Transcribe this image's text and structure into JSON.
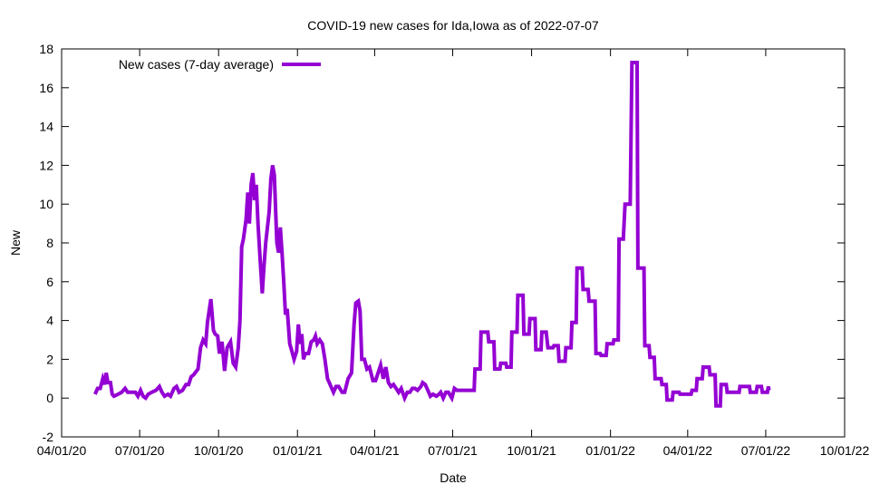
{
  "chart_data": {
    "type": "line",
    "title": "COVID-19 new cases for Ida,Iowa as of 2022-07-07",
    "xlabel": "Date",
    "ylabel": "New",
    "x_units": "days since 04/01/20",
    "xlim": [
      0,
      913
    ],
    "ylim": [
      -2,
      18
    ],
    "grid": false,
    "legend_position": "top-left",
    "x_ticks": [
      {
        "label": "04/01/20",
        "value": 0
      },
      {
        "label": "07/01/20",
        "value": 91
      },
      {
        "label": "10/01/20",
        "value": 183
      },
      {
        "label": "01/01/21",
        "value": 275
      },
      {
        "label": "04/01/21",
        "value": 365
      },
      {
        "label": "07/01/21",
        "value": 456
      },
      {
        "label": "10/01/21",
        "value": 548
      },
      {
        "label": "01/01/22",
        "value": 640
      },
      {
        "label": "04/01/22",
        "value": 730
      },
      {
        "label": "07/01/22",
        "value": 821
      },
      {
        "label": "10/01/22",
        "value": 913
      }
    ],
    "y_ticks": [
      "-2",
      "0",
      "2",
      "4",
      "6",
      "8",
      "10",
      "12",
      "14",
      "16",
      "18"
    ],
    "series": [
      {
        "name": "New cases (7-day average)",
        "color": "#9400d3",
        "x": [
          39,
          42,
          45,
          48,
          50,
          52,
          54,
          57,
          59,
          61,
          66,
          70,
          74,
          77,
          81,
          86,
          89,
          92,
          95,
          98,
          101,
          105,
          110,
          114,
          117,
          120,
          124,
          127,
          131,
          134,
          137,
          141,
          145,
          148,
          151,
          154,
          159,
          162,
          165,
          168,
          170,
          172,
          174,
          177,
          179,
          182,
          184,
          187,
          190,
          193,
          197,
          200,
          203,
          206,
          208,
          210,
          212,
          215,
          217,
          219,
          221,
          223,
          225,
          227,
          229,
          231,
          234,
          236,
          238,
          240,
          242,
          244,
          246,
          248,
          251,
          253,
          255,
          257,
          259,
          261,
          263,
          266,
          268,
          271,
          274,
          276,
          278,
          280,
          282,
          284,
          288,
          291,
          294,
          296,
          298,
          301,
          304,
          307,
          310,
          312,
          315,
          317,
          320,
          323,
          327,
          330,
          334,
          338,
          341,
          343,
          346,
          348,
          350,
          353,
          356,
          359,
          363,
          366,
          369,
          372,
          375,
          378,
          381,
          384,
          387,
          390,
          393,
          396,
          400,
          403,
          406,
          409,
          412,
          415,
          419,
          421,
          424,
          427,
          430,
          433,
          437,
          440,
          442,
          445,
          448,
          451,
          455,
          458,
          461,
          481,
          482,
          488,
          489,
          497,
          498,
          504,
          505,
          511,
          512,
          518,
          519,
          524,
          525,
          531,
          532,
          538,
          539,
          545,
          546,
          552,
          553,
          559,
          560,
          565,
          567,
          573,
          574,
          579,
          580,
          587,
          588,
          594,
          595,
          600,
          601,
          607,
          608,
          614,
          615,
          622,
          623,
          628,
          629,
          635,
          636,
          643,
          644,
          649,
          650,
          655,
          657,
          663,
          665,
          671,
          672,
          679,
          680,
          685,
          686,
          691,
          692,
          699,
          700,
          705,
          706,
          712,
          713,
          720,
          721,
          734,
          735,
          740,
          741,
          747,
          748,
          755,
          756,
          762,
          763,
          768,
          769,
          775,
          776,
          790,
          791,
          802,
          803,
          810,
          811,
          816,
          817,
          823,
          824,
          825
        ],
        "y": [
          0.2,
          0.5,
          0.5,
          1.0,
          0.7,
          1.3,
          0.8,
          0.8,
          0.2,
          0.1,
          0.2,
          0.3,
          0.5,
          0.3,
          0.3,
          0.3,
          0.1,
          0.4,
          0.1,
          0.0,
          0.2,
          0.3,
          0.4,
          0.6,
          0.3,
          0.1,
          0.2,
          0.1,
          0.5,
          0.6,
          0.3,
          0.4,
          0.7,
          0.7,
          1.1,
          1.2,
          1.5,
          2.6,
          3.0,
          2.8,
          3.9,
          4.5,
          5.1,
          3.5,
          3.3,
          3.2,
          2.3,
          2.9,
          1.4,
          2.6,
          2.9,
          1.8,
          1.6,
          2.6,
          4.0,
          7.8,
          8.2,
          9.2,
          10.6,
          9.0,
          11.0,
          11.6,
          10.2,
          11.0,
          9.0,
          7.5,
          5.4,
          6.8,
          8.0,
          8.8,
          9.6,
          11.3,
          12.0,
          11.5,
          8.0,
          7.5,
          8.8,
          7.5,
          6.0,
          4.3,
          4.6,
          2.8,
          2.5,
          2.0,
          2.4,
          3.8,
          2.8,
          3.3,
          2.0,
          2.3,
          2.3,
          2.9,
          3.0,
          3.2,
          2.8,
          3.0,
          2.8,
          2.0,
          1.0,
          0.8,
          0.5,
          0.3,
          0.6,
          0.6,
          0.3,
          0.3,
          1.0,
          1.3,
          3.8,
          4.9,
          5.0,
          4.5,
          2.0,
          2.0,
          1.5,
          1.6,
          0.9,
          0.9,
          1.3,
          1.7,
          1.0,
          1.6,
          0.8,
          0.6,
          0.7,
          0.5,
          0.3,
          0.5,
          0.0,
          0.3,
          0.3,
          0.5,
          0.5,
          0.4,
          0.6,
          0.8,
          0.7,
          0.4,
          0.1,
          0.2,
          0.1,
          0.2,
          0.3,
          0.0,
          0.3,
          0.3,
          0.0,
          0.5,
          0.4,
          0.4,
          1.5,
          1.5,
          3.4,
          3.4,
          2.9,
          2.9,
          1.5,
          1.5,
          1.8,
          1.8,
          1.6,
          1.6,
          3.4,
          3.4,
          5.3,
          5.3,
          3.3,
          3.3,
          4.1,
          4.1,
          2.5,
          2.5,
          3.4,
          3.4,
          2.6,
          2.6,
          2.7,
          2.7,
          1.9,
          1.9,
          2.6,
          2.6,
          3.9,
          3.9,
          6.7,
          6.7,
          5.6,
          5.6,
          5.0,
          5.0,
          2.3,
          2.3,
          2.2,
          2.2,
          2.8,
          2.8,
          3.0,
          3.0,
          8.2,
          8.2,
          10.0,
          10.0,
          17.3,
          17.3,
          6.7,
          6.7,
          2.7,
          2.7,
          2.1,
          2.1,
          1.0,
          1.0,
          0.7,
          0.7,
          -0.1,
          -0.1,
          0.3,
          0.3,
          0.2,
          0.2,
          0.4,
          0.4,
          1.0,
          1.0,
          1.6,
          1.6,
          1.2,
          1.2,
          -0.4,
          -0.4,
          0.7,
          0.7,
          0.3,
          0.3,
          0.6,
          0.6,
          0.3,
          0.3,
          0.6,
          0.6,
          0.3,
          0.3,
          0.6,
          0.4
        ]
      }
    ]
  }
}
